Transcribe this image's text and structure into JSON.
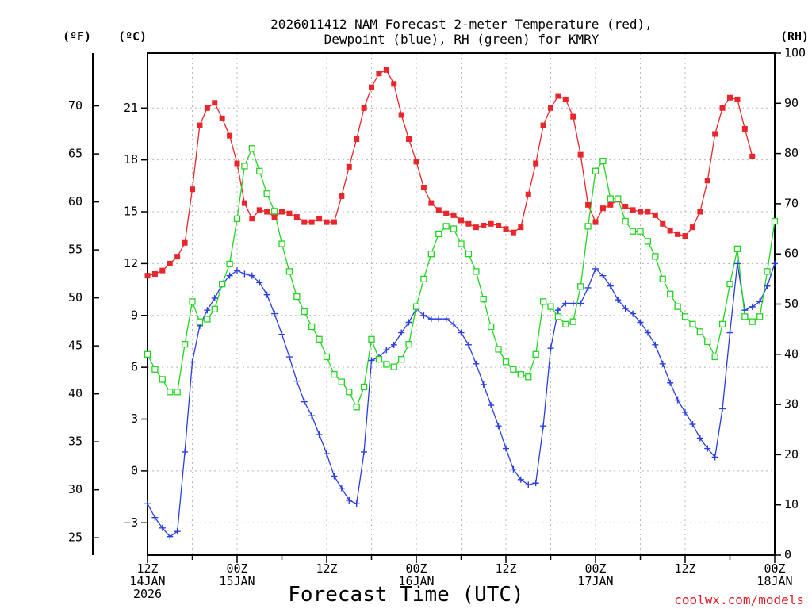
{
  "chart_data": {
    "type": "line",
    "title_lines": [
      "2026011412 NAM Forecast 2-meter Temperature (red),",
      "Dewpoint (blue), RH (green) for KMRY"
    ],
    "xlabel": "Forecast Time (UTC)",
    "credit": "coolwx.com/models",
    "unit_labels": {
      "fahrenheit": "(ºF)",
      "celsius": "(ºC)",
      "rh": "(RH)"
    },
    "x_unit": "hours since 2026-01-14 12Z",
    "x_range": [
      0,
      84
    ],
    "x_ticks": [
      {
        "x": 0,
        "lines": [
          "12Z",
          "14JAN",
          "2026"
        ]
      },
      {
        "x": 12,
        "lines": [
          "00Z",
          "15JAN"
        ]
      },
      {
        "x": 24,
        "lines": [
          "12Z"
        ]
      },
      {
        "x": 36,
        "lines": [
          "00Z",
          "16JAN"
        ]
      },
      {
        "x": 48,
        "lines": [
          "12Z"
        ]
      },
      {
        "x": 60,
        "lines": [
          "00Z",
          "17JAN"
        ]
      },
      {
        "x": 72,
        "lines": [
          "12Z"
        ]
      },
      {
        "x": 84,
        "lines": [
          "00Z",
          "18JAN"
        ]
      }
    ],
    "celsius_axis": {
      "ticks": [
        -3,
        0,
        3,
        6,
        9,
        12,
        15,
        18,
        21
      ],
      "range": [
        -4.87,
        24.18
      ]
    },
    "fahrenheit_axis": {
      "ticks": [
        25,
        30,
        35,
        40,
        45,
        50,
        55,
        60,
        65,
        70
      ],
      "range": [
        23.2,
        75.5
      ]
    },
    "rh_axis": {
      "ticks": [
        0,
        10,
        20,
        30,
        40,
        50,
        60,
        70,
        80,
        90,
        100
      ],
      "range": [
        0,
        100
      ]
    },
    "grid": true,
    "series": [
      {
        "name": "Temperature",
        "color": "#e8262b",
        "marker": "filled-square",
        "axis": "celsius",
        "points": [
          [
            0,
            11.3
          ],
          [
            1,
            11.4
          ],
          [
            2,
            11.6
          ],
          [
            3,
            12.0
          ],
          [
            4,
            12.4
          ],
          [
            5,
            13.2
          ],
          [
            6,
            16.3
          ],
          [
            7,
            20.0
          ],
          [
            8,
            21.0
          ],
          [
            9,
            21.3
          ],
          [
            10,
            20.4
          ],
          [
            11,
            19.4
          ],
          [
            12,
            17.8
          ],
          [
            13,
            15.5
          ],
          [
            14,
            14.6
          ],
          [
            15,
            15.1
          ],
          [
            16,
            15.0
          ],
          [
            17,
            14.7
          ],
          [
            18,
            15.0
          ],
          [
            19,
            14.9
          ],
          [
            20,
            14.7
          ],
          [
            21,
            14.4
          ],
          [
            22,
            14.4
          ],
          [
            23,
            14.6
          ],
          [
            24,
            14.4
          ],
          [
            25,
            14.4
          ],
          [
            26,
            15.9
          ],
          [
            27,
            17.6
          ],
          [
            28,
            19.2
          ],
          [
            29,
            21.0
          ],
          [
            30,
            22.2
          ],
          [
            31,
            23.0
          ],
          [
            32,
            23.2
          ],
          [
            33,
            22.4
          ],
          [
            34,
            20.6
          ],
          [
            35,
            19.2
          ],
          [
            36,
            17.9
          ],
          [
            37,
            16.4
          ],
          [
            38,
            15.5
          ],
          [
            39,
            15.1
          ],
          [
            40,
            14.9
          ],
          [
            41,
            14.8
          ],
          [
            42,
            14.5
          ],
          [
            43,
            14.3
          ],
          [
            44,
            14.1
          ],
          [
            45,
            14.2
          ],
          [
            46,
            14.3
          ],
          [
            47,
            14.2
          ],
          [
            48,
            14.0
          ],
          [
            49,
            13.8
          ],
          [
            50,
            14.1
          ],
          [
            51,
            16.0
          ],
          [
            52,
            17.8
          ],
          [
            53,
            20.0
          ],
          [
            54,
            21.0
          ],
          [
            55,
            21.7
          ],
          [
            56,
            21.5
          ],
          [
            57,
            20.5
          ],
          [
            58,
            18.3
          ],
          [
            59,
            15.4
          ],
          [
            60,
            14.4
          ],
          [
            61,
            15.2
          ],
          [
            62,
            15.4
          ],
          [
            63,
            15.7
          ],
          [
            64,
            15.3
          ],
          [
            65,
            15.1
          ],
          [
            66,
            15.0
          ],
          [
            67,
            15.0
          ],
          [
            68,
            14.8
          ],
          [
            69,
            14.3
          ],
          [
            70,
            13.9
          ],
          [
            71,
            13.7
          ],
          [
            72,
            13.6
          ],
          [
            73,
            14.1
          ],
          [
            74,
            15.0
          ],
          [
            75,
            16.8
          ],
          [
            76,
            19.5
          ],
          [
            77,
            21.0
          ],
          [
            78,
            21.6
          ],
          [
            79,
            21.5
          ],
          [
            80,
            19.8
          ],
          [
            81,
            18.2
          ]
        ]
      },
      {
        "name": "Dewpoint",
        "color": "#2a3ee0",
        "marker": "plus",
        "axis": "celsius",
        "points": [
          [
            0,
            -1.9
          ],
          [
            1,
            -2.7
          ],
          [
            2,
            -3.3
          ],
          [
            3,
            -3.8
          ],
          [
            4,
            -3.5
          ],
          [
            5,
            1.1
          ],
          [
            6,
            6.3
          ],
          [
            7,
            8.4
          ],
          [
            8,
            9.3
          ],
          [
            9,
            10.0
          ],
          [
            10,
            10.8
          ],
          [
            11,
            11.3
          ],
          [
            12,
            11.6
          ],
          [
            13,
            11.4
          ],
          [
            14,
            11.3
          ],
          [
            15,
            10.9
          ],
          [
            16,
            10.2
          ],
          [
            17,
            9.1
          ],
          [
            18,
            7.9
          ],
          [
            19,
            6.6
          ],
          [
            20,
            5.2
          ],
          [
            21,
            4.0
          ],
          [
            22,
            3.2
          ],
          [
            23,
            2.1
          ],
          [
            24,
            1.0
          ],
          [
            25,
            -0.3
          ],
          [
            26,
            -1.0
          ],
          [
            27,
            -1.7
          ],
          [
            28,
            -1.9
          ],
          [
            29,
            1.1
          ],
          [
            30,
            6.4
          ],
          [
            31,
            6.6
          ],
          [
            32,
            7.0
          ],
          [
            33,
            7.3
          ],
          [
            34,
            8.0
          ],
          [
            35,
            8.6
          ],
          [
            36,
            9.4
          ],
          [
            37,
            9.0
          ],
          [
            38,
            8.8
          ],
          [
            39,
            8.8
          ],
          [
            40,
            8.8
          ],
          [
            41,
            8.5
          ],
          [
            42,
            8.0
          ],
          [
            43,
            7.3
          ],
          [
            44,
            6.2
          ],
          [
            45,
            5.0
          ],
          [
            46,
            3.8
          ],
          [
            47,
            2.6
          ],
          [
            48,
            1.3
          ],
          [
            49,
            0.1
          ],
          [
            50,
            -0.5
          ],
          [
            51,
            -0.8
          ],
          [
            52,
            -0.7
          ],
          [
            53,
            2.6
          ],
          [
            54,
            7.1
          ],
          [
            55,
            9.3
          ],
          [
            56,
            9.7
          ],
          [
            57,
            9.7
          ],
          [
            58,
            9.7
          ],
          [
            59,
            10.6
          ],
          [
            60,
            11.7
          ],
          [
            61,
            11.3
          ],
          [
            62,
            10.7
          ],
          [
            63,
            9.9
          ],
          [
            64,
            9.4
          ],
          [
            65,
            9.1
          ],
          [
            66,
            8.6
          ],
          [
            67,
            8.0
          ],
          [
            68,
            7.3
          ],
          [
            69,
            6.2
          ],
          [
            70,
            5.1
          ],
          [
            71,
            4.1
          ],
          [
            72,
            3.4
          ],
          [
            73,
            2.7
          ],
          [
            74,
            1.9
          ],
          [
            75,
            1.3
          ],
          [
            76,
            0.8
          ],
          [
            77,
            3.6
          ],
          [
            78,
            8.0
          ],
          [
            79,
            12.0
          ],
          [
            80,
            9.3
          ],
          [
            81,
            9.5
          ],
          [
            82,
            9.8
          ],
          [
            83,
            10.7
          ],
          [
            84,
            12.0
          ]
        ]
      },
      {
        "name": "RH",
        "color": "#22d422",
        "marker": "open-square",
        "axis": "rh",
        "points": [
          [
            0,
            40
          ],
          [
            1,
            37
          ],
          [
            2,
            35
          ],
          [
            3,
            32.5
          ],
          [
            4,
            32.5
          ],
          [
            5,
            42
          ],
          [
            6,
            50.5
          ],
          [
            7,
            46.5
          ],
          [
            8,
            47
          ],
          [
            9,
            49
          ],
          [
            10,
            54
          ],
          [
            11,
            58
          ],
          [
            12,
            67
          ],
          [
            13,
            77.5
          ],
          [
            14,
            81
          ],
          [
            15,
            76.5
          ],
          [
            16,
            72
          ],
          [
            17,
            68.5
          ],
          [
            18,
            62
          ],
          [
            19,
            56.5
          ],
          [
            20,
            51.5
          ],
          [
            21,
            48.5
          ],
          [
            22,
            45.5
          ],
          [
            23,
            43
          ],
          [
            24,
            39.5
          ],
          [
            25,
            36
          ],
          [
            26,
            34.5
          ],
          [
            27,
            32.5
          ],
          [
            28,
            29.5
          ],
          [
            29,
            33.5
          ],
          [
            30,
            43
          ],
          [
            31,
            39
          ],
          [
            32,
            38
          ],
          [
            33,
            37.5
          ],
          [
            34,
            39
          ],
          [
            35,
            42
          ],
          [
            36,
            49.5
          ],
          [
            37,
            55
          ],
          [
            38,
            60
          ],
          [
            39,
            64
          ],
          [
            40,
            65.5
          ],
          [
            41,
            65
          ],
          [
            42,
            62
          ],
          [
            43,
            60
          ],
          [
            44,
            56.5
          ],
          [
            45,
            51
          ],
          [
            46,
            45.5
          ],
          [
            47,
            41
          ],
          [
            48,
            38.5
          ],
          [
            49,
            37
          ],
          [
            50,
            36
          ],
          [
            51,
            35.5
          ],
          [
            52,
            40
          ],
          [
            53,
            50.5
          ],
          [
            54,
            49.5
          ],
          [
            55,
            47.5
          ],
          [
            56,
            46
          ],
          [
            57,
            46.5
          ],
          [
            58,
            53.5
          ],
          [
            59,
            65.5
          ],
          [
            60,
            76.5
          ],
          [
            61,
            78.5
          ],
          [
            62,
            71
          ],
          [
            63,
            71
          ],
          [
            64,
            66.5
          ],
          [
            65,
            64.5
          ],
          [
            66,
            64.5
          ],
          [
            67,
            62.5
          ],
          [
            68,
            59.5
          ],
          [
            69,
            55
          ],
          [
            70,
            52
          ],
          [
            71,
            49.5
          ],
          [
            72,
            47.5
          ],
          [
            73,
            46
          ],
          [
            74,
            44.5
          ],
          [
            75,
            42.5
          ],
          [
            76,
            39.5
          ],
          [
            77,
            46
          ],
          [
            78,
            54
          ],
          [
            79,
            61
          ],
          [
            80,
            47.5
          ],
          [
            81,
            46.5
          ],
          [
            82,
            47.5
          ],
          [
            83,
            56.5
          ],
          [
            84,
            66.5
          ]
        ]
      }
    ]
  }
}
